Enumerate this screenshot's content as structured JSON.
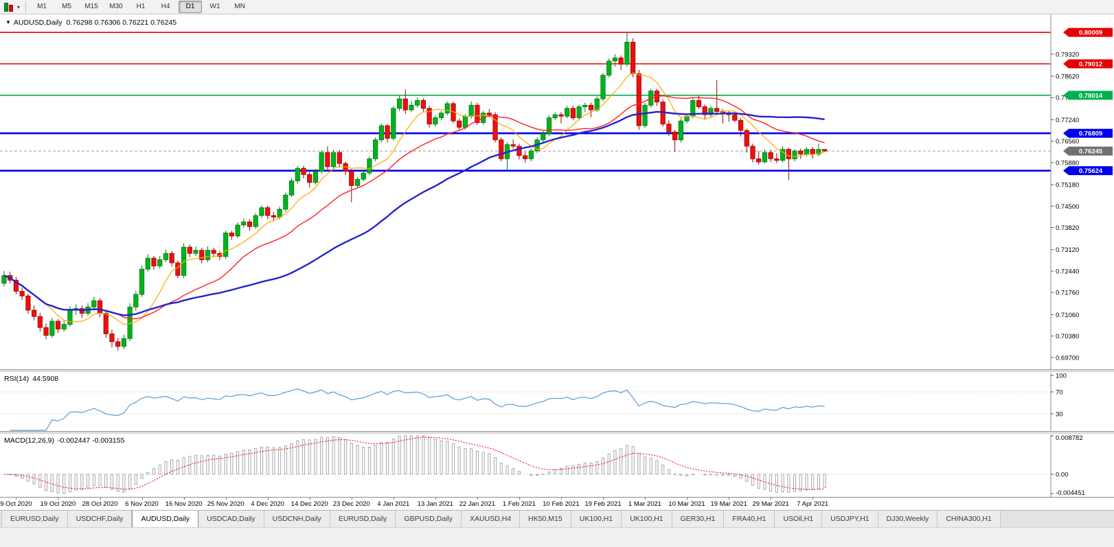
{
  "toolbar": {
    "timeframes": [
      "M1",
      "M5",
      "M15",
      "M30",
      "H1",
      "H4",
      "D1",
      "W1",
      "MN"
    ],
    "active_timeframe": "D1"
  },
  "icons": {
    "chart_menu_caret": "▼",
    "chart_type_caret": "▾"
  },
  "chart": {
    "symbol_period": "AUDUSD,Daily",
    "ohlc_line": "0.76298 0.76306 0.76221 0.76245"
  },
  "chart_data": {
    "type": "candlestick",
    "symbol": "AUDUSD",
    "timeframe": "Daily",
    "last_candle": {
      "open": 0.76298,
      "high": 0.76306,
      "low": 0.76221,
      "close": 0.76245
    },
    "price_axis_ticks": [
      "0.79320",
      "0.78620",
      "0.77940",
      "0.77240",
      "0.76560",
      "0.75880",
      "0.75180",
      "0.74500",
      "0.73820",
      "0.73120",
      "0.72440",
      "0.71760",
      "0.71060",
      "0.70380",
      "0.69700"
    ],
    "hlines": [
      {
        "price": 0.80009,
        "label": "0.80009",
        "color": "#e80000",
        "width": 1.6
      },
      {
        "price": 0.79012,
        "label": "0.79012",
        "color": "#e80000",
        "width": 1.6
      },
      {
        "price": 0.78014,
        "label": "0.78014",
        "color": "#00b050",
        "width": 1.6
      },
      {
        "price": 0.76809,
        "label": "0.76809",
        "color": "#0000ee",
        "width": 2.6
      },
      {
        "price": 0.75624,
        "label": "0.75624",
        "color": "#0000ee",
        "width": 2.6
      }
    ],
    "current_price": {
      "value": 0.76245,
      "label": "0.76245",
      "box_color": "#707070"
    },
    "colors": {
      "up": "#00b31e",
      "up_border": "#027a10",
      "down": "#ee0f0f",
      "down_border": "#9c0202"
    },
    "moving_averages": [
      {
        "name": "fast-ma",
        "period": 8,
        "color": "#ffa800",
        "width": 1.2
      },
      {
        "name": "medium-ma",
        "period": 20,
        "color": "#ff2020",
        "width": 1.4
      },
      {
        "name": "slow-ma",
        "period": 45,
        "color": "#2323cc",
        "width": 2.4
      }
    ],
    "date_labels": {
      "start_index": 2,
      "step": 7,
      "labels": [
        "9 Oct 2020",
        "19 Oct 2020",
        "28 Oct 2020",
        "6 Nov 2020",
        "16 Nov 2020",
        "25 Nov 2020",
        "4 Dec 2020",
        "14 Dec 2020",
        "23 Dec 2020",
        "4 Jan 2021",
        "13 Jan 2021",
        "22 Jan 2021",
        "1 Feb 2021",
        "10 Feb 2021",
        "19 Feb 2021",
        "1 Mar 2021",
        "10 Mar 2021",
        "19 Mar 2021",
        "29 Mar 2021",
        "7 Apr 2021"
      ]
    },
    "rsi": {
      "label": "RSI(14)",
      "value": "44.5908",
      "period": 14,
      "levels": [
        70,
        30
      ],
      "axis_labels": [
        "100",
        "70",
        "30"
      ],
      "color": "#5b9bd5"
    },
    "macd": {
      "label": "MACD(12,26,9)",
      "values": "-0.002447 -0.003155",
      "fast": 12,
      "slow": 26,
      "signal_period": 9,
      "axis_labels": [
        "0.008782",
        "0.00",
        "-0.004451"
      ],
      "hist_color": "#a8a8a8",
      "signal_color": "#e80000"
    },
    "candles": [
      [
        0.7205,
        0.7245,
        0.7195,
        0.723
      ],
      [
        0.723,
        0.7242,
        0.7205,
        0.7215
      ],
      [
        0.7215,
        0.7225,
        0.717,
        0.718
      ],
      [
        0.718,
        0.7192,
        0.7152,
        0.7165
      ],
      [
        0.7165,
        0.7172,
        0.7108,
        0.712
      ],
      [
        0.712,
        0.7135,
        0.7088,
        0.71
      ],
      [
        0.71,
        0.7112,
        0.7052,
        0.7065
      ],
      [
        0.7065,
        0.7078,
        0.7028,
        0.704
      ],
      [
        0.704,
        0.7096,
        0.7032,
        0.7085
      ],
      [
        0.7085,
        0.7092,
        0.7048,
        0.706
      ],
      [
        0.706,
        0.7088,
        0.7052,
        0.7075
      ],
      [
        0.7075,
        0.7132,
        0.7068,
        0.712
      ],
      [
        0.712,
        0.7138,
        0.7105,
        0.7125
      ],
      [
        0.7125,
        0.7135,
        0.7095,
        0.711
      ],
      [
        0.711,
        0.7142,
        0.7102,
        0.713
      ],
      [
        0.713,
        0.7162,
        0.712,
        0.715
      ],
      [
        0.715,
        0.7158,
        0.7098,
        0.711
      ],
      [
        0.711,
        0.7118,
        0.7032,
        0.7045
      ],
      [
        0.7045,
        0.7058,
        0.7002,
        0.702
      ],
      [
        0.702,
        0.7032,
        0.6992,
        0.7005
      ],
      [
        0.7005,
        0.7042,
        0.6996,
        0.703
      ],
      [
        0.703,
        0.7142,
        0.7022,
        0.713
      ],
      [
        0.713,
        0.7182,
        0.7118,
        0.717
      ],
      [
        0.717,
        0.7262,
        0.7162,
        0.725
      ],
      [
        0.725,
        0.7298,
        0.7242,
        0.7285
      ],
      [
        0.7285,
        0.7292,
        0.7248,
        0.726
      ],
      [
        0.726,
        0.7292,
        0.7252,
        0.728
      ],
      [
        0.728,
        0.7312,
        0.7272,
        0.73
      ],
      [
        0.73,
        0.7308,
        0.7258,
        0.727
      ],
      [
        0.727,
        0.7278,
        0.7222,
        0.723
      ],
      [
        0.723,
        0.7332,
        0.7222,
        0.732
      ],
      [
        0.732,
        0.7328,
        0.7288,
        0.73
      ],
      [
        0.73,
        0.7322,
        0.7292,
        0.731
      ],
      [
        0.731,
        0.7318,
        0.7268,
        0.728
      ],
      [
        0.728,
        0.7322,
        0.7272,
        0.731
      ],
      [
        0.731,
        0.7318,
        0.7288,
        0.73
      ],
      [
        0.73,
        0.7308,
        0.7278,
        0.729
      ],
      [
        0.729,
        0.7372,
        0.7282,
        0.7365
      ],
      [
        0.7365,
        0.7372,
        0.7342,
        0.7355
      ],
      [
        0.7355,
        0.7398,
        0.7348,
        0.739
      ],
      [
        0.739,
        0.7412,
        0.7382,
        0.74
      ],
      [
        0.74,
        0.7408,
        0.7372,
        0.7385
      ],
      [
        0.7385,
        0.7428,
        0.7378,
        0.742
      ],
      [
        0.742,
        0.7452,
        0.7412,
        0.7445
      ],
      [
        0.7445,
        0.7452,
        0.7408,
        0.742
      ],
      [
        0.742,
        0.7432,
        0.7402,
        0.7415
      ],
      [
        0.7415,
        0.7448,
        0.7408,
        0.744
      ],
      [
        0.744,
        0.7492,
        0.7432,
        0.7485
      ],
      [
        0.7485,
        0.7538,
        0.7478,
        0.753
      ],
      [
        0.753,
        0.7578,
        0.7522,
        0.757
      ],
      [
        0.757,
        0.7578,
        0.7538,
        0.755
      ],
      [
        0.755,
        0.7558,
        0.7508,
        0.7525
      ],
      [
        0.7525,
        0.7568,
        0.7518,
        0.756
      ],
      [
        0.756,
        0.7628,
        0.7552,
        0.762
      ],
      [
        0.762,
        0.7639,
        0.7562,
        0.7575
      ],
      [
        0.7575,
        0.7628,
        0.7568,
        0.762
      ],
      [
        0.762,
        0.7628,
        0.7572,
        0.7585
      ],
      [
        0.7585,
        0.7592,
        0.7548,
        0.756
      ],
      [
        0.756,
        0.7568,
        0.7462,
        0.7515
      ],
      [
        0.7515,
        0.7542,
        0.7508,
        0.7535
      ],
      [
        0.7535,
        0.7562,
        0.7528,
        0.7555
      ],
      [
        0.7555,
        0.7608,
        0.7548,
        0.76
      ],
      [
        0.76,
        0.7668,
        0.7592,
        0.766
      ],
      [
        0.766,
        0.7712,
        0.7652,
        0.7705
      ],
      [
        0.7705,
        0.7712,
        0.7652,
        0.7665
      ],
      [
        0.7665,
        0.7768,
        0.7658,
        0.776
      ],
      [
        0.776,
        0.78,
        0.7752,
        0.779
      ],
      [
        0.779,
        0.782,
        0.7742,
        0.7755
      ],
      [
        0.7755,
        0.7782,
        0.7748,
        0.777
      ],
      [
        0.777,
        0.7795,
        0.7762,
        0.7785
      ],
      [
        0.7785,
        0.7792,
        0.7748,
        0.776
      ],
      [
        0.776,
        0.7768,
        0.7698,
        0.771
      ],
      [
        0.771,
        0.7738,
        0.7702,
        0.773
      ],
      [
        0.773,
        0.7752,
        0.7722,
        0.7745
      ],
      [
        0.7745,
        0.7782,
        0.7738,
        0.7775
      ],
      [
        0.7775,
        0.7782,
        0.7712,
        0.772
      ],
      [
        0.772,
        0.7728,
        0.7692,
        0.77
      ],
      [
        0.77,
        0.7742,
        0.7692,
        0.7735
      ],
      [
        0.7735,
        0.7782,
        0.7728,
        0.777
      ],
      [
        0.777,
        0.7778,
        0.7708,
        0.7715
      ],
      [
        0.7715,
        0.7752,
        0.7708,
        0.7745
      ],
      [
        0.7745,
        0.7758,
        0.7732,
        0.774
      ],
      [
        0.774,
        0.7748,
        0.7652,
        0.766
      ],
      [
        0.766,
        0.7668,
        0.7592,
        0.76
      ],
      [
        0.76,
        0.7652,
        0.7562,
        0.7645
      ],
      [
        0.7645,
        0.7662,
        0.7632,
        0.764
      ],
      [
        0.764,
        0.7648,
        0.7598,
        0.761
      ],
      [
        0.761,
        0.7622,
        0.7588,
        0.76
      ],
      [
        0.76,
        0.7632,
        0.7592,
        0.7625
      ],
      [
        0.7625,
        0.7668,
        0.7618,
        0.766
      ],
      [
        0.766,
        0.7688,
        0.7652,
        0.768
      ],
      [
        0.768,
        0.7738,
        0.7672,
        0.773
      ],
      [
        0.773,
        0.7748,
        0.7722,
        0.774
      ],
      [
        0.774,
        0.7748,
        0.7712,
        0.7735
      ],
      [
        0.7735,
        0.7768,
        0.7728,
        0.776
      ],
      [
        0.776,
        0.7768,
        0.7722,
        0.773
      ],
      [
        0.773,
        0.7772,
        0.7722,
        0.7765
      ],
      [
        0.7765,
        0.7778,
        0.7748,
        0.777
      ],
      [
        0.777,
        0.7778,
        0.7732,
        0.7755
      ],
      [
        0.7755,
        0.7798,
        0.7748,
        0.779
      ],
      [
        0.779,
        0.7872,
        0.7782,
        0.7865
      ],
      [
        0.7865,
        0.7918,
        0.7858,
        0.791
      ],
      [
        0.791,
        0.7932,
        0.7892,
        0.792
      ],
      [
        0.792,
        0.7928,
        0.7882,
        0.79
      ],
      [
        0.79,
        0.8001,
        0.7892,
        0.797
      ],
      [
        0.797,
        0.7982,
        0.7858,
        0.787
      ],
      [
        0.787,
        0.7882,
        0.7692,
        0.7705
      ],
      [
        0.7705,
        0.7778,
        0.7698,
        0.777
      ],
      [
        0.777,
        0.7822,
        0.7762,
        0.7815
      ],
      [
        0.7815,
        0.7822,
        0.7768,
        0.778
      ],
      [
        0.778,
        0.7788,
        0.7702,
        0.771
      ],
      [
        0.771,
        0.7722,
        0.7672,
        0.7685
      ],
      [
        0.7685,
        0.7692,
        0.7622,
        0.766
      ],
      [
        0.766,
        0.7728,
        0.7652,
        0.772
      ],
      [
        0.772,
        0.7742,
        0.7712,
        0.7735
      ],
      [
        0.7735,
        0.7792,
        0.7728,
        0.7785
      ],
      [
        0.7785,
        0.78,
        0.7758,
        0.7765
      ],
      [
        0.7765,
        0.7772,
        0.7725,
        0.774
      ],
      [
        0.774,
        0.7768,
        0.7732,
        0.776
      ],
      [
        0.776,
        0.785,
        0.7742,
        0.775
      ],
      [
        0.775,
        0.7758,
        0.7712,
        0.7745
      ],
      [
        0.7745,
        0.7752,
        0.7718,
        0.774
      ],
      [
        0.774,
        0.7748,
        0.7715,
        0.7722
      ],
      [
        0.7722,
        0.773,
        0.767,
        0.769
      ],
      [
        0.769,
        0.7695,
        0.762,
        0.764
      ],
      [
        0.764,
        0.7648,
        0.7588,
        0.76
      ],
      [
        0.76,
        0.7625,
        0.7582,
        0.759
      ],
      [
        0.759,
        0.763,
        0.7585,
        0.762
      ],
      [
        0.762,
        0.7628,
        0.759,
        0.76
      ],
      [
        0.76,
        0.7618,
        0.7586,
        0.7595
      ],
      [
        0.7595,
        0.764,
        0.7588,
        0.763
      ],
      [
        0.763,
        0.7635,
        0.7532,
        0.76
      ],
      [
        0.76,
        0.763,
        0.7592,
        0.7625
      ],
      [
        0.7625,
        0.7632,
        0.76,
        0.7615
      ],
      [
        0.7615,
        0.7637,
        0.7608,
        0.763
      ],
      [
        0.763,
        0.7638,
        0.76,
        0.7615
      ],
      [
        0.7615,
        0.7648,
        0.7608,
        0.76298
      ],
      [
        0.76298,
        0.76306,
        0.76221,
        0.76245
      ]
    ]
  },
  "tabs": {
    "items": [
      "EURUSD,Daily",
      "USDCHF,Daily",
      "AUDUSD,Daily",
      "USDCAD,Daily",
      "USDCNH,Daily",
      "EURUSD,Daily",
      "GBPUSD,Daily",
      "XAUUSD,H4",
      "HK50,M15",
      "UK100,H1",
      "UK100,H1",
      "GER30,H1",
      "FRA40,H1",
      "USOil,H1",
      "USDJPY,H1",
      "DJ30,Weekly",
      "CHINA300,H1"
    ],
    "active_index": 2
  }
}
